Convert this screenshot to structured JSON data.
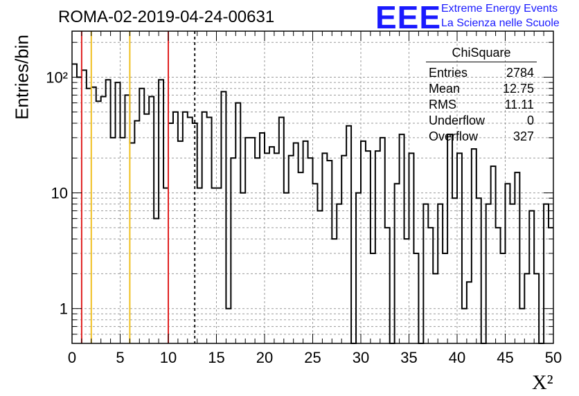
{
  "header": {
    "title": "ROMA-02-2019-04-24-00631",
    "logo_text": "EEE",
    "logo_line1": "Extreme Energy Events",
    "logo_line2": "La Scienza nelle Scuole"
  },
  "stats_box": {
    "title": "ChiSquare",
    "rows": [
      {
        "label": "Entries",
        "value": "2784"
      },
      {
        "label": "Mean",
        "value": "12.75"
      },
      {
        "label": "RMS",
        "value": "11.11"
      },
      {
        "label": "Underflow",
        "value": "0"
      },
      {
        "label": "Overflow",
        "value": "327"
      }
    ]
  },
  "chart_data": {
    "type": "histogram",
    "xlabel": "X²",
    "ylabel": "Entries/bin",
    "xlim": [
      0,
      50
    ],
    "ylim": [
      0.5,
      250
    ],
    "log_y": true,
    "grid": true,
    "bin_width": 0.5,
    "x_ticks": [
      "0",
      "5",
      "10",
      "15",
      "20",
      "25",
      "30",
      "35",
      "40",
      "45",
      "50"
    ],
    "y_ticks": [
      "1",
      "10",
      "10²"
    ],
    "values": [
      130,
      100,
      115,
      80,
      82,
      62,
      68,
      95,
      30,
      90,
      30,
      70,
      27,
      42,
      80,
      48,
      68,
      6,
      95,
      11,
      40,
      50,
      28,
      50,
      45,
      40,
      11,
      50,
      45,
      11,
      11,
      75,
      1,
      20,
      60,
      10,
      30,
      30,
      20,
      33,
      22,
      25,
      22,
      45,
      10,
      21,
      27,
      15,
      28,
      20,
      12,
      7,
      22,
      19,
      4,
      8,
      21,
      38,
      0,
      10,
      28,
      23,
      3,
      23,
      30,
      5,
      0,
      12,
      32,
      4,
      22,
      3,
      0,
      8,
      5,
      2,
      8,
      3,
      32,
      9,
      22,
      1,
      1.7,
      24,
      9,
      0,
      8,
      17,
      5,
      3,
      12,
      8,
      15,
      1,
      2,
      7,
      2,
      0,
      8,
      5
    ],
    "vertical_lines": [
      {
        "x": 1,
        "color": "#e02020",
        "style": "solid"
      },
      {
        "x": 2,
        "color": "#f0c020",
        "style": "solid"
      },
      {
        "x": 6,
        "color": "#f0c020",
        "style": "solid"
      },
      {
        "x": 10,
        "color": "#e02020",
        "style": "solid"
      },
      {
        "x": 12.75,
        "color": "#000000",
        "style": "dashed"
      }
    ]
  }
}
